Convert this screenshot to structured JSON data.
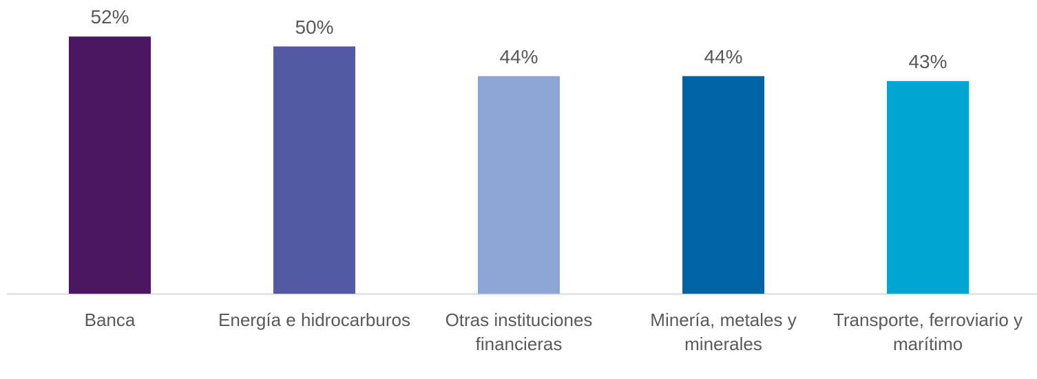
{
  "chart_data": {
    "type": "bar",
    "categories": [
      "Banca",
      "Energía e hidrocarburos",
      "Otras instituciones financieras",
      "Minería, metales y minerales",
      "Transporte, ferroviario y marítimo"
    ],
    "values": [
      52,
      50,
      44,
      44,
      43
    ],
    "value_labels": [
      "52%",
      "50%",
      "44%",
      "44%",
      "43%"
    ],
    "colors": [
      "#4a1760",
      "#545aa3",
      "#8ea4d4",
      "#0063a3",
      "#00a4d1"
    ]
  }
}
